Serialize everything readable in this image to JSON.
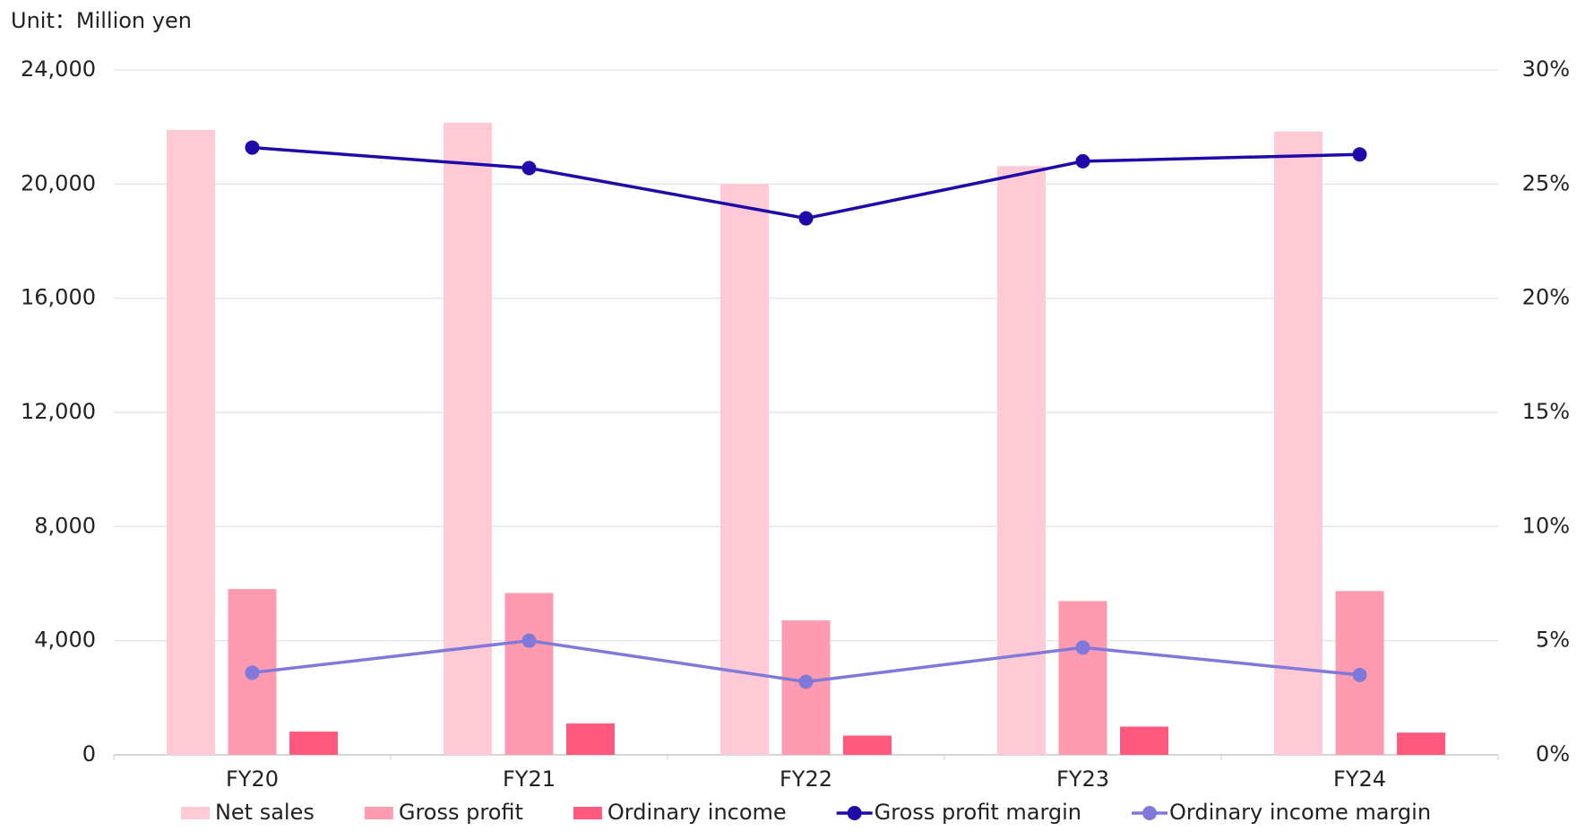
{
  "chart_data": {
    "type": "bar-line",
    "subtitle": "Unit：Million yen",
    "categories": [
      "FY20",
      "FY21",
      "FY22",
      "FY23",
      "FY24"
    ],
    "series": [
      {
        "name": "Net sales",
        "type": "bar",
        "color": "#ffc9d5",
        "values": [
          21900,
          22150,
          20000,
          20630,
          21840
        ]
      },
      {
        "name": "Gross profit",
        "type": "bar",
        "color": "#ff9bb0",
        "values": [
          5810,
          5670,
          4710,
          5390,
          5740
        ]
      },
      {
        "name": "Ordinary income",
        "type": "bar",
        "color": "#ff5a7e",
        "values": [
          815,
          1100,
          675,
          990,
          780
        ]
      },
      {
        "name": "Gross profit margin",
        "type": "line",
        "axis": "y2",
        "color": "#1e0aa8",
        "values": [
          26.6,
          25.7,
          23.5,
          26.0,
          26.3
        ]
      },
      {
        "name": "Ordinary income margin",
        "type": "line",
        "axis": "y2",
        "color": "#8079d9",
        "values": [
          3.6,
          5.0,
          3.2,
          4.7,
          3.5
        ]
      }
    ],
    "ylim": [
      0,
      24000
    ],
    "yticks": [
      0,
      {
        "value": 4000,
        "label": "4,000"
      },
      {
        "value": 8000,
        "label": "8,000"
      },
      {
        "value": 12000,
        "label": "12,000"
      },
      {
        "value": 16000,
        "label": "16,000"
      },
      {
        "value": 20000,
        "label": "20,000"
      },
      {
        "value": 24000,
        "label": "24,000"
      }
    ],
    "y2lim": [
      0,
      30
    ],
    "y2ticks": [
      {
        "value": 0,
        "label": "0%"
      },
      {
        "value": 5,
        "label": "5%"
      },
      {
        "value": 10,
        "label": "10%"
      },
      {
        "value": 15,
        "label": "15%"
      },
      {
        "value": 20,
        "label": "20%"
      },
      {
        "value": 25,
        "label": "25%"
      },
      {
        "value": 30,
        "label": "30%"
      }
    ],
    "grid": true,
    "legend": "bottom"
  }
}
